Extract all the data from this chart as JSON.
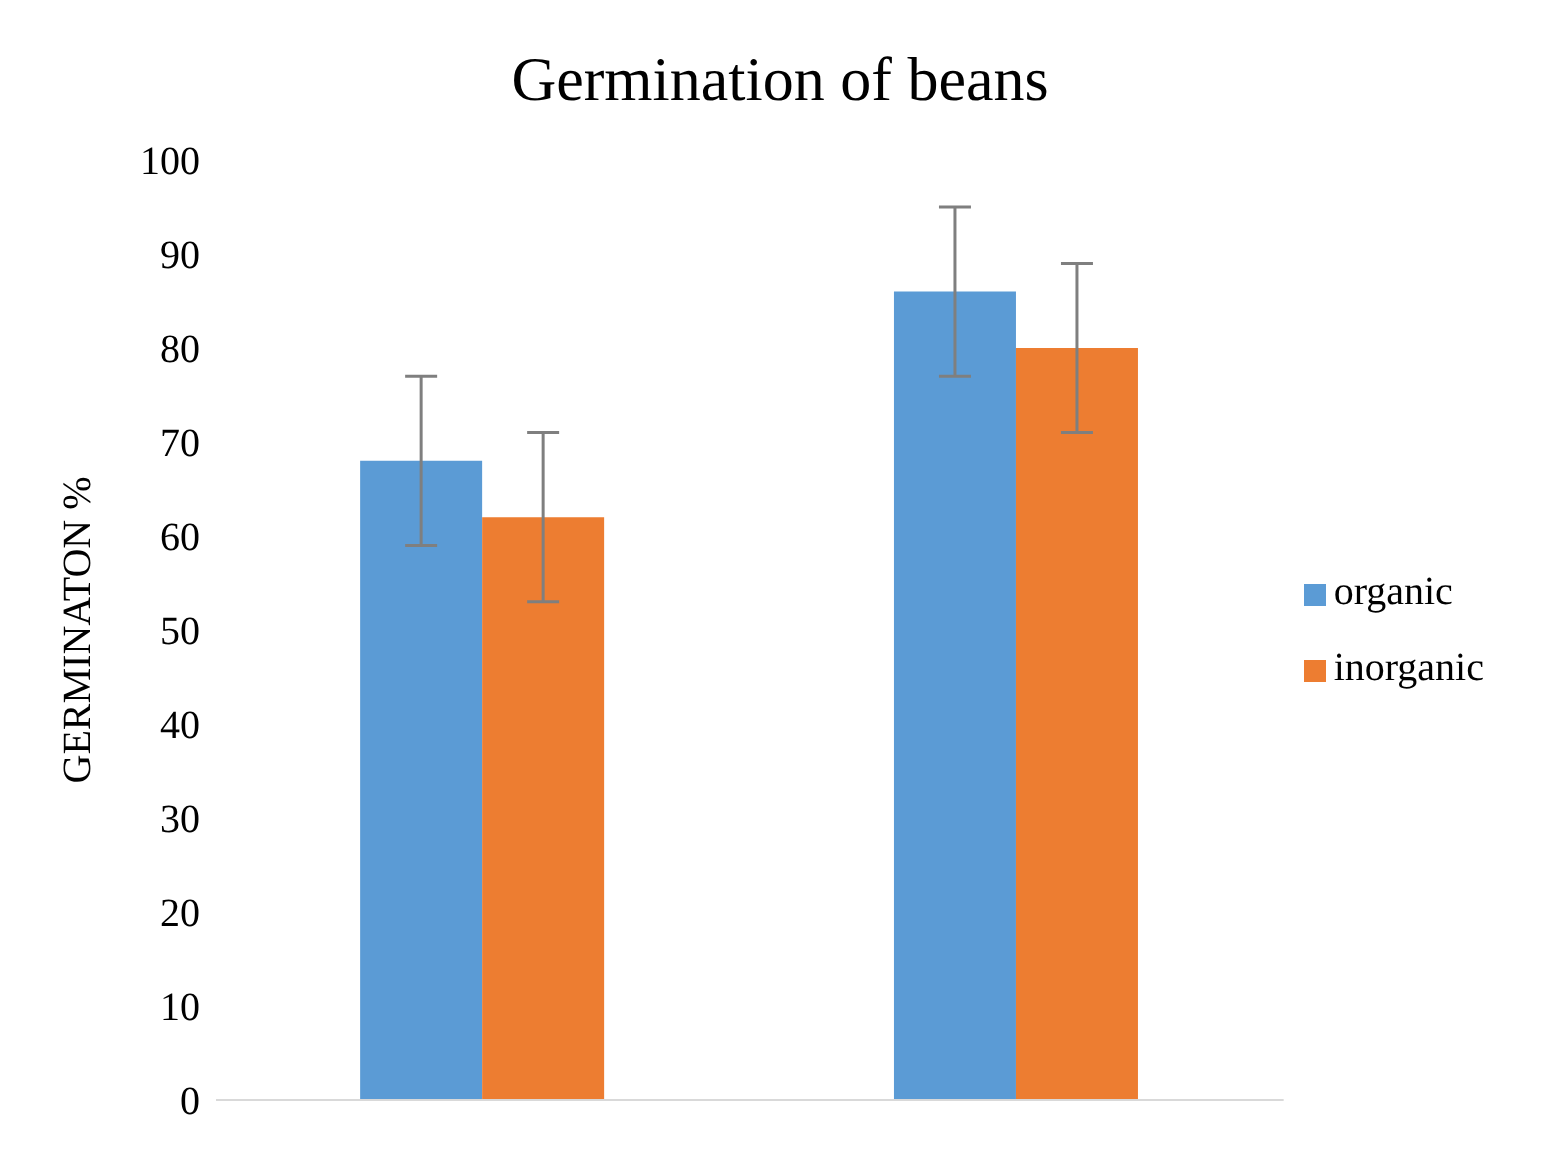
{
  "chart_data": {
    "type": "bar",
    "title": "Germination of beans",
    "ylabel": "GERMINATON %",
    "categories": [
      null,
      null
    ],
    "series": [
      {
        "name": "organic",
        "color": "#5b9bd5",
        "values": [
          68,
          86
        ],
        "errors": [
          9,
          9
        ]
      },
      {
        "name": "inorganic",
        "color": "#ed7d31",
        "values": [
          62,
          80
        ],
        "errors": [
          9,
          9
        ]
      }
    ],
    "ylim": [
      0,
      100
    ],
    "yticks": [
      0,
      10,
      20,
      30,
      40,
      50,
      60,
      70,
      80,
      90,
      100
    ],
    "grid": false,
    "legend": "right"
  }
}
